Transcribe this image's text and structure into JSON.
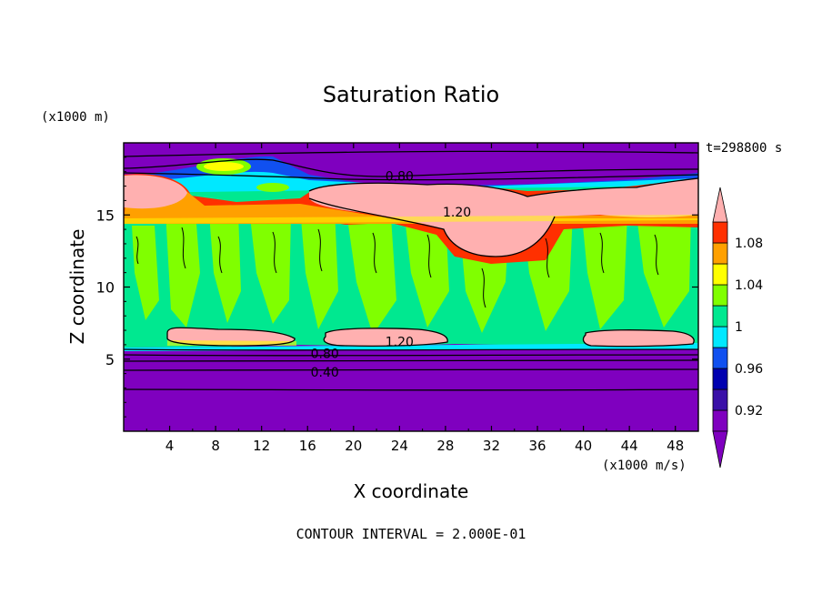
{
  "chart_data": {
    "type": "heatmap",
    "title": "Saturation Ratio",
    "xlabel": "X coordinate",
    "ylabel": "Z coordinate",
    "x_unit": "(x1000 m/s)",
    "y_unit": "(x1000 m)",
    "time_label": "t=298800 s",
    "footer": "CONTOUR INTERVAL = 2.000E-01",
    "xlim": [
      0,
      50
    ],
    "ylim": [
      0,
      20
    ],
    "x_ticks": [
      4,
      8,
      12,
      16,
      20,
      24,
      28,
      32,
      36,
      40,
      44,
      48
    ],
    "y_ticks": [
      5,
      10,
      15
    ],
    "colorbar": {
      "levels": [
        0.9,
        0.92,
        0.94,
        0.96,
        0.98,
        1.0,
        1.02,
        1.04,
        1.06,
        1.08,
        1.1
      ],
      "labels": [
        "0.92",
        "0.96",
        "1",
        "1.04",
        "1.08"
      ],
      "label_values": [
        0.92,
        0.96,
        1.0,
        1.04,
        1.08
      ],
      "colors": [
        "#7f00bf",
        "#3a10a8",
        "#0000b0",
        "#1050f0",
        "#00e8ff",
        "#00e890",
        "#80ff00",
        "#ffff00",
        "#ffa000",
        "#ff3000",
        "#ffb0b0"
      ],
      "under_color": "#7f00bf",
      "over_color": "#ffb0b0"
    },
    "contour_labels": [
      {
        "text": "0.80",
        "x": 24.0,
        "z": 17.7
      },
      {
        "text": "1.20",
        "x": 29.0,
        "z": 15.2
      },
      {
        "text": "0.80",
        "x": 17.5,
        "z": 5.4
      },
      {
        "text": "1.20",
        "x": 24.0,
        "z": 6.2
      },
      {
        "text": "0.40",
        "x": 17.5,
        "z": 4.1
      }
    ]
  }
}
